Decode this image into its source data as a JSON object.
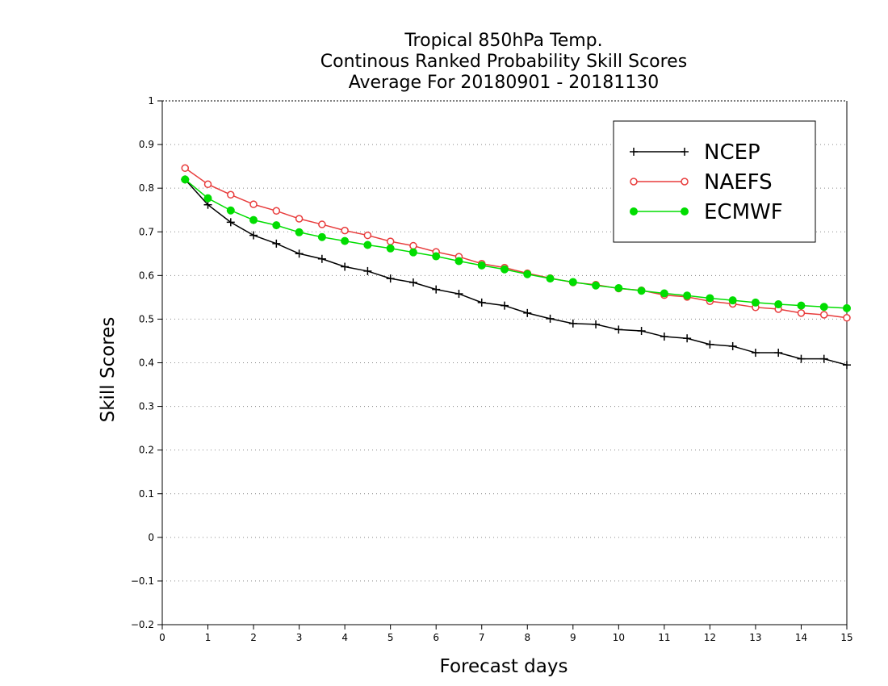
{
  "chart_data": {
    "type": "line",
    "title_lines": [
      "Tropical 850hPa Temp.",
      "Continous Ranked Probability Skill Scores",
      "Average For 20180901 - 20181130"
    ],
    "xlabel": "Forecast days",
    "ylabel": "Skill Scores",
    "xlim": [
      0,
      15
    ],
    "ylim": [
      -0.2,
      1
    ],
    "x_ticks": [
      "0",
      "1",
      "2",
      "3",
      "4",
      "5",
      "6",
      "7",
      "8",
      "9",
      "10",
      "11",
      "12",
      "13",
      "14",
      "15"
    ],
    "y_ticks": [
      "−0.2",
      "−0.1",
      "0",
      "0.1",
      "0.2",
      "0.3",
      "0.4",
      "0.5",
      "0.6",
      "0.7",
      "0.8",
      "0.9",
      "1"
    ],
    "grid": "horizontal-dotted",
    "legend_position": "top-right",
    "x": [
      0.5,
      1,
      1.5,
      2,
      2.5,
      3,
      3.5,
      4,
      4.5,
      5,
      5.5,
      6,
      6.5,
      7,
      7.5,
      8,
      8.5,
      9,
      9.5,
      10,
      10.5,
      11,
      11.5,
      12,
      12.5,
      13,
      13.5,
      14,
      14.5,
      15
    ],
    "series": [
      {
        "name": "NCEP",
        "color": "#000000",
        "marker": "plus",
        "values": [
          0.82,
          0.762,
          0.722,
          0.692,
          0.673,
          0.65,
          0.638,
          0.62,
          0.61,
          0.593,
          0.584,
          0.568,
          0.558,
          0.538,
          0.531,
          0.514,
          0.501,
          0.49,
          0.488,
          0.476,
          0.473,
          0.46,
          0.456,
          0.442,
          0.438,
          0.423,
          0.423,
          0.409,
          0.409,
          0.395
        ]
      },
      {
        "name": "NAEFS",
        "color": "#e83c3c",
        "marker": "open-circle",
        "values": [
          0.846,
          0.809,
          0.785,
          0.763,
          0.748,
          0.73,
          0.717,
          0.703,
          0.692,
          0.678,
          0.668,
          0.654,
          0.643,
          0.627,
          0.618,
          0.605,
          0.594,
          0.584,
          0.579,
          0.57,
          0.566,
          0.555,
          0.551,
          0.541,
          0.535,
          0.527,
          0.523,
          0.514,
          0.51,
          0.503
        ]
      },
      {
        "name": "ECMWF",
        "color": "#00dd00",
        "marker": "filled-circle",
        "values": [
          0.82,
          0.777,
          0.749,
          0.727,
          0.715,
          0.699,
          0.688,
          0.679,
          0.67,
          0.662,
          0.653,
          0.644,
          0.633,
          0.623,
          0.614,
          0.603,
          0.593,
          0.585,
          0.577,
          0.571,
          0.565,
          0.559,
          0.554,
          0.548,
          0.543,
          0.538,
          0.534,
          0.531,
          0.528,
          0.525
        ]
      }
    ]
  }
}
